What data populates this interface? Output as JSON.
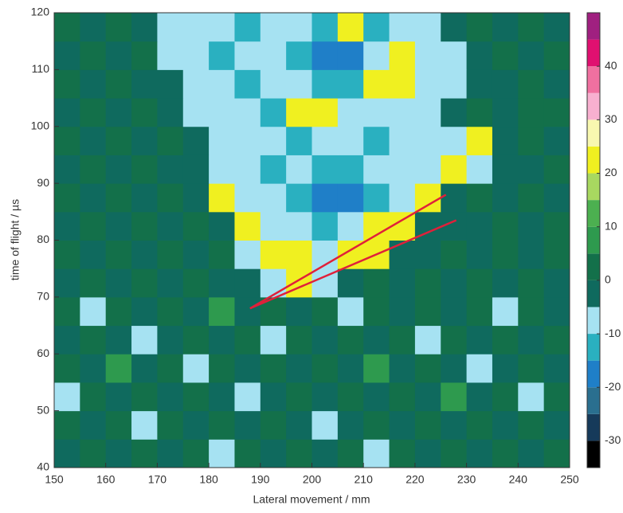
{
  "chart_data": {
    "type": "heatmap",
    "xlabel": "Lateral movement / mm",
    "ylabel": "time of flight / µs",
    "xlim": [
      150,
      250
    ],
    "xticks": [
      150,
      160,
      170,
      180,
      190,
      200,
      210,
      220,
      230,
      240,
      250
    ],
    "ylim": [
      40,
      120
    ],
    "yticks": [
      40,
      50,
      60,
      70,
      80,
      90,
      100,
      110,
      120
    ],
    "x_bins": [
      150,
      155,
      160,
      165,
      170,
      175,
      180,
      185,
      190,
      195,
      200,
      205,
      210,
      215,
      220,
      225,
      230,
      235,
      240,
      245,
      250
    ],
    "y_bins": [
      40,
      45,
      50,
      55,
      60,
      65,
      70,
      75,
      80,
      85,
      90,
      95,
      100,
      105,
      110,
      115,
      120
    ],
    "z": [
      [
        -3,
        2,
        -3,
        2,
        -3,
        2,
        -8,
        2,
        -3,
        2,
        -3,
        2,
        -8,
        2,
        -3,
        2,
        -3,
        2,
        -3,
        2
      ],
      [
        2,
        -3,
        2,
        -8,
        2,
        -3,
        2,
        -3,
        2,
        -3,
        -8,
        -3,
        2,
        -3,
        2,
        -3,
        2,
        -3,
        2,
        -3
      ],
      [
        -8,
        2,
        -3,
        2,
        -3,
        2,
        -3,
        -8,
        -3,
        2,
        -3,
        2,
        -3,
        2,
        -3,
        7,
        -3,
        2,
        -8,
        2
      ],
      [
        2,
        -3,
        7,
        -3,
        2,
        -8,
        2,
        -3,
        2,
        -3,
        2,
        -3,
        7,
        -3,
        2,
        -3,
        -8,
        -3,
        2,
        -3
      ],
      [
        -3,
        2,
        -3,
        -8,
        -3,
        2,
        -3,
        2,
        -8,
        2,
        -3,
        2,
        -3,
        2,
        -8,
        2,
        -3,
        2,
        -3,
        2
      ],
      [
        2,
        -8,
        2,
        -3,
        2,
        -3,
        7,
        -3,
        2,
        -3,
        2,
        -8,
        2,
        -3,
        2,
        -3,
        2,
        -8,
        2,
        -3
      ],
      [
        -3,
        2,
        -3,
        2,
        -3,
        2,
        -3,
        -3,
        -8,
        22,
        -8,
        -3,
        2,
        -3,
        2,
        -3,
        2,
        -3,
        2,
        -3
      ],
      [
        2,
        -3,
        2,
        -3,
        2,
        -3,
        2,
        -8,
        22,
        22,
        -8,
        22,
        22,
        -3,
        -3,
        2,
        -3,
        2,
        -3,
        2
      ],
      [
        -3,
        2,
        -3,
        2,
        -3,
        2,
        -3,
        22,
        -8,
        -8,
        -12,
        -8,
        22,
        22,
        -3,
        -3,
        -3,
        2,
        -3,
        2
      ],
      [
        2,
        -3,
        2,
        -3,
        2,
        -3,
        22,
        -8,
        -8,
        -12,
        -18,
        -18,
        -12,
        -8,
        22,
        -3,
        2,
        -3,
        2,
        -3
      ],
      [
        -3,
        2,
        -3,
        2,
        -3,
        -3,
        -8,
        -8,
        -12,
        -8,
        -12,
        -12,
        -8,
        -8,
        -8,
        22,
        -8,
        -3,
        -3,
        2
      ],
      [
        2,
        -3,
        2,
        -3,
        2,
        -3,
        -8,
        -8,
        -8,
        -12,
        -8,
        -8,
        -12,
        -8,
        -8,
        -8,
        22,
        -3,
        2,
        -3
      ],
      [
        -3,
        2,
        -3,
        2,
        -3,
        -8,
        -8,
        -8,
        -12,
        22,
        22,
        -8,
        -8,
        -8,
        -8,
        -3,
        2,
        -3,
        2,
        2
      ],
      [
        2,
        -3,
        2,
        -3,
        -3,
        -8,
        -8,
        -12,
        -8,
        -8,
        -12,
        -12,
        22,
        22,
        -8,
        -8,
        -3,
        -3,
        2,
        -3
      ],
      [
        -3,
        2,
        -3,
        2,
        -8,
        -8,
        -12,
        -8,
        -8,
        -12,
        -18,
        -18,
        -8,
        22,
        -8,
        -8,
        -3,
        2,
        -3,
        2
      ],
      [
        2,
        -3,
        2,
        -3,
        -8,
        -8,
        -8,
        -12,
        -8,
        -8,
        -12,
        22,
        -12,
        -8,
        -8,
        -3,
        2,
        -3,
        2,
        -3
      ]
    ],
    "colorbar": {
      "bounds": [
        -35,
        -30,
        -25,
        -20,
        -15,
        -10,
        -5,
        0,
        5,
        10,
        15,
        20,
        25,
        30,
        35,
        40,
        45,
        50
      ],
      "colors": [
        "#000000",
        "#163a5a",
        "#2a6f8f",
        "#1f7fc8",
        "#2ab0c0",
        "#a6e2f2",
        "#0f6a5e",
        "#13704a",
        "#2e9a4e",
        "#4cb050",
        "#a8d860",
        "#f0f020",
        "#f8f8b0",
        "#f8b0d0",
        "#f070a0",
        "#e01070",
        "#a02080"
      ],
      "ylim": [
        -35,
        50
      ],
      "yticks": [
        -30,
        -20,
        -10,
        0,
        10,
        20,
        30,
        40
      ]
    },
    "lines": [
      {
        "color": "#e0203a",
        "x": [
          188,
          226
        ],
        "y": [
          68,
          88
        ]
      },
      {
        "color": "#e0203a",
        "x": [
          188,
          228
        ],
        "y": [
          68,
          83.5
        ]
      }
    ]
  }
}
